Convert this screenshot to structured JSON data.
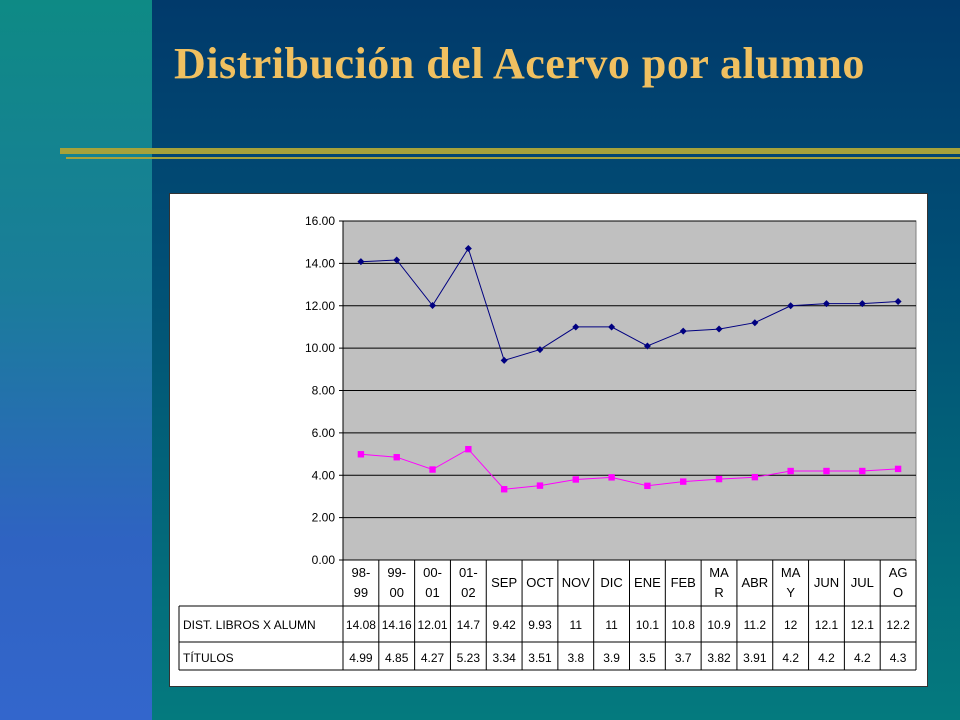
{
  "slide": {
    "title": "Distribución del Acervo por alumno"
  },
  "colors": {
    "title": "#f0c060",
    "background": "#013a6b",
    "band": "#3366cc",
    "rule": "#a6a23a",
    "plot_area": "#c0c0c0",
    "series_1": "#000080",
    "series_2": "#ff00ff"
  },
  "chart_data": {
    "type": "line",
    "title": "",
    "xlabel": "",
    "ylabel": "",
    "ylim": [
      0,
      16
    ],
    "y_ticks": [
      "0.00",
      "2.00",
      "4.00",
      "6.00",
      "8.00",
      "10.00",
      "12.00",
      "14.00",
      "16.00"
    ],
    "grid": true,
    "categories": [
      [
        "98-",
        "99"
      ],
      [
        "99-",
        "00"
      ],
      [
        "00-",
        "01"
      ],
      [
        "01-",
        "02"
      ],
      [
        "SEP"
      ],
      [
        "OCT"
      ],
      [
        "NOV"
      ],
      [
        "DIC"
      ],
      [
        "ENE"
      ],
      [
        "FEB"
      ],
      [
        "MA",
        "R"
      ],
      [
        "ABR"
      ],
      [
        "MA",
        "Y"
      ],
      [
        "JUN"
      ],
      [
        "JUL"
      ],
      [
        "AG",
        "O"
      ]
    ],
    "series": [
      {
        "name": "DIST. LIBROS X ALUMN",
        "marker": "diamond",
        "values": [
          14.08,
          14.16,
          12.01,
          14.7,
          9.42,
          9.93,
          11,
          11,
          10.1,
          10.8,
          10.9,
          11.2,
          12,
          12.1,
          12.1,
          12.2
        ],
        "labels": [
          "14.08",
          "14.16",
          "12.01",
          "14.7",
          "9.42",
          "9.93",
          "11",
          "11",
          "10.1",
          "10.8",
          "10.9",
          "11.2",
          "12",
          "12.1",
          "12.1",
          "12.2"
        ]
      },
      {
        "name": "TÍTULOS",
        "marker": "square",
        "values": [
          4.99,
          4.85,
          4.27,
          5.23,
          3.34,
          3.51,
          3.8,
          3.9,
          3.5,
          3.7,
          3.82,
          3.91,
          4.2,
          4.2,
          4.2,
          4.3
        ],
        "labels": [
          "4.99",
          "4.85",
          "4.27",
          "5.23",
          "3.34",
          "3.51",
          "3.8",
          "3.9",
          "3.5",
          "3.7",
          "3.82",
          "3.91",
          "4.2",
          "4.2",
          "4.2",
          "4.3"
        ]
      }
    ]
  }
}
